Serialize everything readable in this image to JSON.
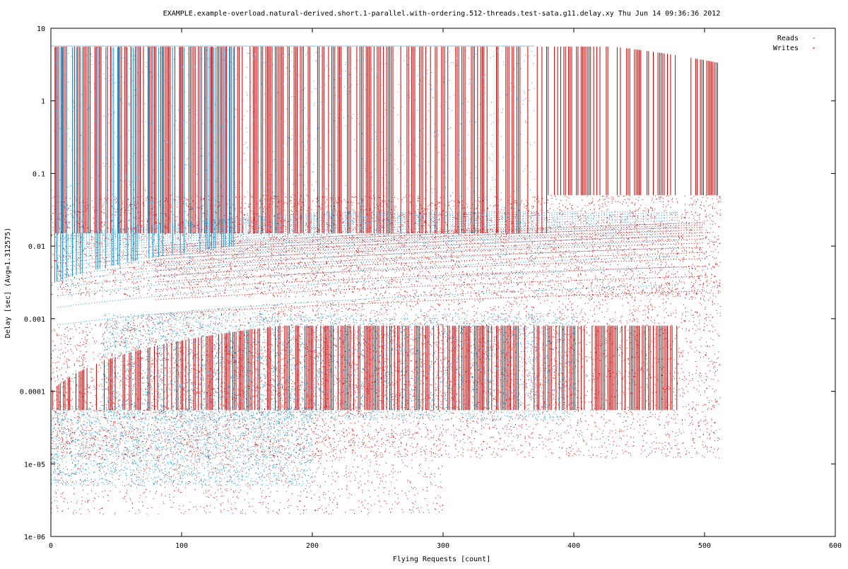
{
  "chart_data": {
    "type": "scatter",
    "title": "EXAMPLE.example-overload.natural-derived.short.1-parallel.with-ordering.512-threads.test-sata.g11.delay.xy Thu Jun 14 09:36:36 2012",
    "xlabel": "Flying Requests [count]",
    "ylabel": "Delay [sec]  (Avg=1.312575)",
    "xlim": [
      0,
      600
    ],
    "ylim": [
      1e-06,
      10
    ],
    "y_scale": "log",
    "grid": false,
    "legend_position": "top-right",
    "x_ticks": [
      {
        "value": 0,
        "label": "0"
      },
      {
        "value": 100,
        "label": "100"
      },
      {
        "value": 200,
        "label": "200"
      },
      {
        "value": 300,
        "label": "300"
      },
      {
        "value": 400,
        "label": "400"
      },
      {
        "value": 500,
        "label": "500"
      },
      {
        "value": 600,
        "label": "600"
      }
    ],
    "y_ticks": [
      {
        "value": 10,
        "label": "10"
      },
      {
        "value": 1,
        "label": "1"
      },
      {
        "value": 0.1,
        "label": "0.1"
      },
      {
        "value": 0.01,
        "label": "0.01"
      },
      {
        "value": 0.001,
        "label": "0.001"
      },
      {
        "value": 0.0001,
        "label": "0.0001"
      },
      {
        "value": 1e-05,
        "label": "1e-05"
      },
      {
        "value": 1e-06,
        "label": "1e-06"
      }
    ],
    "series": [
      {
        "name": "Reads",
        "color": "#1e90d0",
        "x_max": 480,
        "y_min": 4e-06,
        "y_max": 6
      },
      {
        "name": "Writes",
        "color": "#cc0000",
        "x_max": 512,
        "y_min": 1.5e-06,
        "y_max": 6
      }
    ]
  }
}
